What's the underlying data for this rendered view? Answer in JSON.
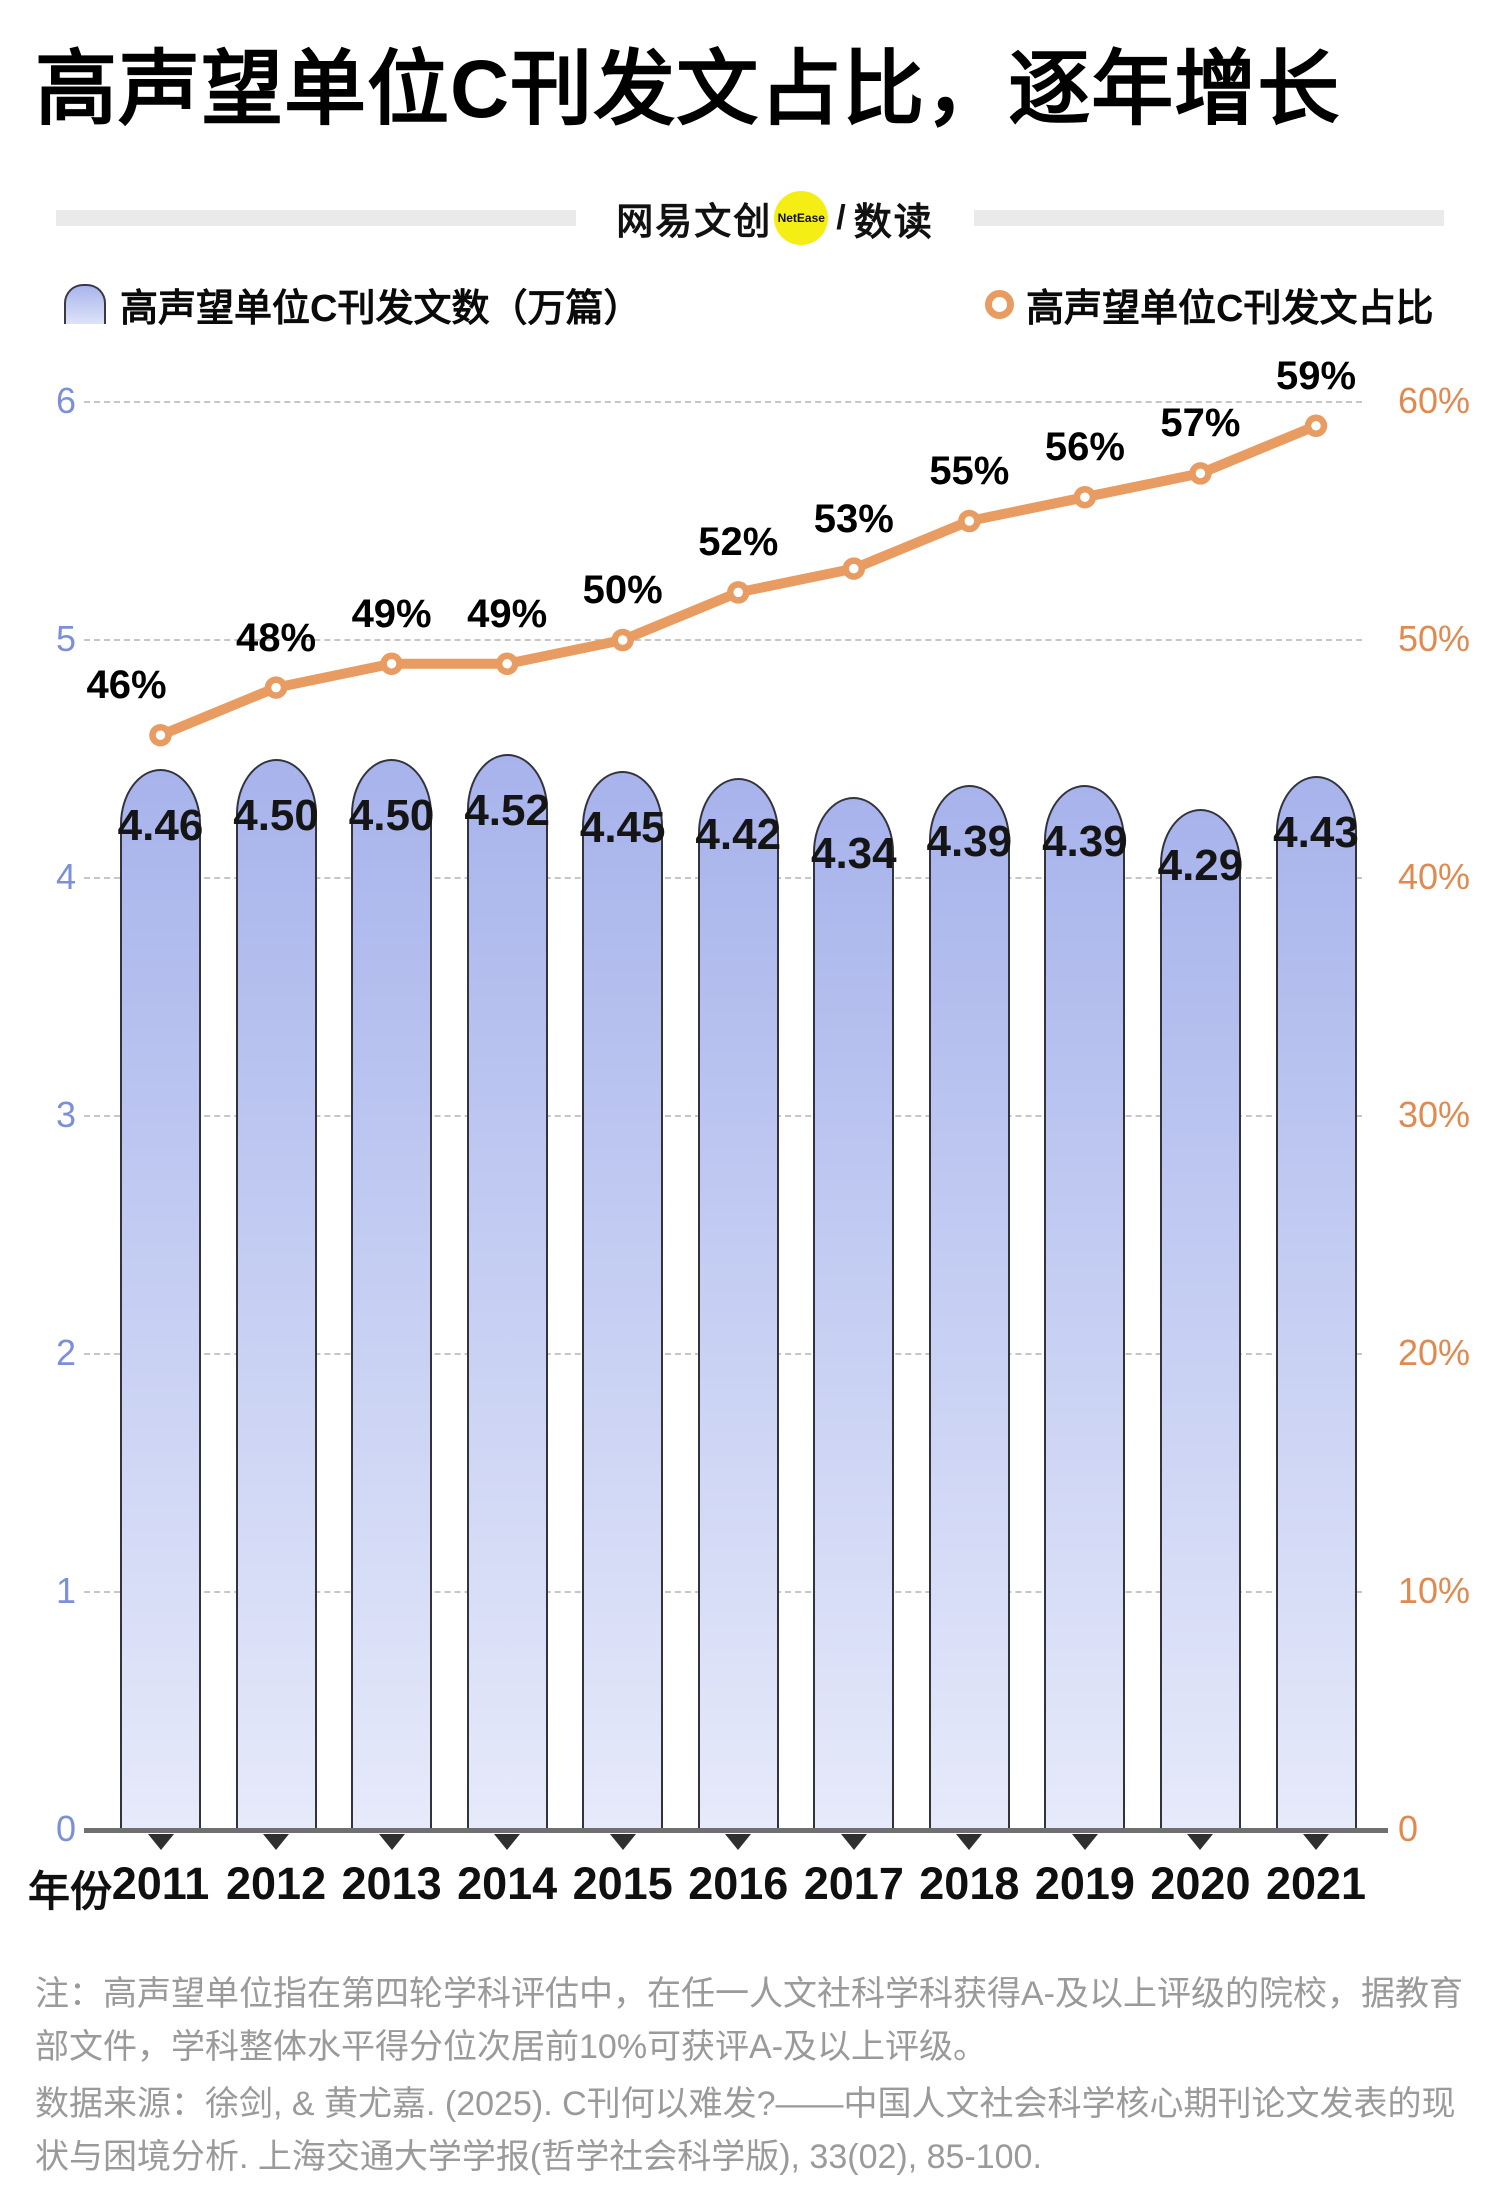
{
  "title": "高声望单位C刊发文占比，逐年增长",
  "logo": {
    "brand": "网易文创",
    "badge": "NetEase",
    "slash": "/",
    "product": "数读",
    "badge_color": "#F5EE15"
  },
  "legend": {
    "bars_label": "高声望单位C刊发文数（万篇）",
    "line_label": "高声望单位C刊发文占比"
  },
  "chart_data": {
    "type": "bar",
    "categories": [
      "2011",
      "2012",
      "2013",
      "2014",
      "2015",
      "2016",
      "2017",
      "2018",
      "2019",
      "2020",
      "2021"
    ],
    "xlabel": "年份",
    "series": [
      {
        "name": "高声望单位C刊发文数（万篇）",
        "type": "bar",
        "axis": "left",
        "values": [
          4.46,
          4.5,
          4.5,
          4.52,
          4.45,
          4.42,
          4.34,
          4.39,
          4.39,
          4.29,
          4.43
        ],
        "value_labels": [
          "4.46",
          "4.50",
          "4.50",
          "4.52",
          "4.45",
          "4.42",
          "4.34",
          "4.39",
          "4.39",
          "4.29",
          "4.43"
        ],
        "fill_top": "#A7B3EB",
        "fill_bottom": "#E6EAFA",
        "outline": "#33333D"
      },
      {
        "name": "高声望单位C刊发文占比",
        "type": "line",
        "axis": "right",
        "values": [
          46,
          48,
          49,
          49,
          50,
          52,
          53,
          55,
          56,
          57,
          59
        ],
        "value_labels": [
          "46%",
          "48%",
          "49%",
          "49%",
          "50%",
          "52%",
          "53%",
          "55%",
          "56%",
          "57%",
          "59%"
        ],
        "color": "#E89C62",
        "marker": "open-circle"
      }
    ],
    "left_axis": {
      "min": 0,
      "max": 6,
      "ticks": [
        "0",
        "1",
        "2",
        "3",
        "4",
        "5",
        "6"
      ],
      "color": "#7C90D8"
    },
    "right_axis": {
      "min": 0,
      "max": 60,
      "ticks": [
        "0",
        "10%",
        "20%",
        "30%",
        "40%",
        "50%",
        "60%"
      ],
      "color": "#E08A50"
    },
    "grid": "dashed-horizontal",
    "legend_position": "top"
  },
  "footnotes": {
    "note": "注：高声望单位指在第四轮学科评估中，在任一人文社科学科获得A-及以上评级的院校，据教育部文件，学科整体水平得分位次居前10%可获评A-及以上评级。",
    "source": "数据来源：徐剑, & 黄尤嘉. (2025). C刊何以难发?——中国人文社会科学核心期刊论文发表的现状与困境分析. 上海交通大学学报(哲学社会科学版), 33(02), 85-100."
  }
}
